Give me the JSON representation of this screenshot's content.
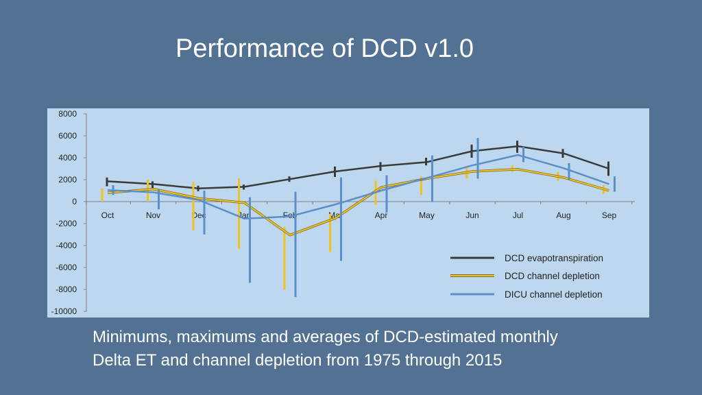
{
  "slide": {
    "title": "Performance of DCD v1.0",
    "caption_line1": "Minimums, maximums and averages of DCD-estimated monthly",
    "caption_line2": "Delta ET and channel depletion from 1975 through 2015"
  },
  "colors": {
    "background": "#537293",
    "plot_area": "#bdd7ee",
    "axis": "#7f7f7f"
  },
  "chart_data": {
    "type": "line",
    "title": "",
    "xlabel": "",
    "ylabel": "",
    "categories": [
      "Oct",
      "Nov",
      "Dec",
      "Jan",
      "Feb",
      "Mar",
      "Apr",
      "May",
      "Jun",
      "Jul",
      "Aug",
      "Sep"
    ],
    "ylim": [
      -10000,
      8000
    ],
    "yticks": [
      8000,
      6000,
      4000,
      2000,
      0,
      -2000,
      -4000,
      -6000,
      -8000,
      -10000
    ],
    "grid": false,
    "legend_position": "bottom-right",
    "series": [
      {
        "name": "DCD evapotranspiration",
        "color": "#3a3a3a",
        "values": [
          1850,
          1600,
          1200,
          1350,
          2050,
          2750,
          3250,
          3600,
          4600,
          5050,
          4400,
          3000
        ],
        "min": [
          1400,
          1250,
          950,
          1100,
          1800,
          2250,
          2800,
          3300,
          4000,
          4450,
          4000,
          2350
        ],
        "max": [
          2200,
          1850,
          1450,
          1550,
          2300,
          3200,
          3600,
          4000,
          5200,
          5550,
          4800,
          3650
        ]
      },
      {
        "name": "DCD channel depletion",
        "color": "#f4c21f",
        "values": [
          800,
          1150,
          300,
          -100,
          -3050,
          -1500,
          1300,
          2100,
          2750,
          2950,
          2200,
          1000
        ],
        "min": [
          0,
          0,
          -2600,
          -4300,
          -8000,
          -4600,
          -300,
          600,
          2100,
          2700,
          1900,
          700
        ],
        "max": [
          1200,
          2000,
          1800,
          2100,
          -2300,
          -1100,
          1900,
          2300,
          3200,
          3300,
          2700,
          1500
        ]
      },
      {
        "name": "DICU channel depletion",
        "color": "#5b8fc9",
        "values": [
          1050,
          850,
          150,
          -1550,
          -1350,
          -250,
          1000,
          2150,
          3300,
          4250,
          3050,
          1600
        ],
        "min": [
          600,
          -700,
          -3000,
          -7400,
          -8700,
          -5400,
          -1000,
          0,
          2100,
          3600,
          2000,
          900
        ],
        "max": [
          1500,
          1100,
          1000,
          400,
          900,
          2200,
          2400,
          4200,
          5800,
          5000,
          3500,
          2300
        ]
      }
    ]
  }
}
